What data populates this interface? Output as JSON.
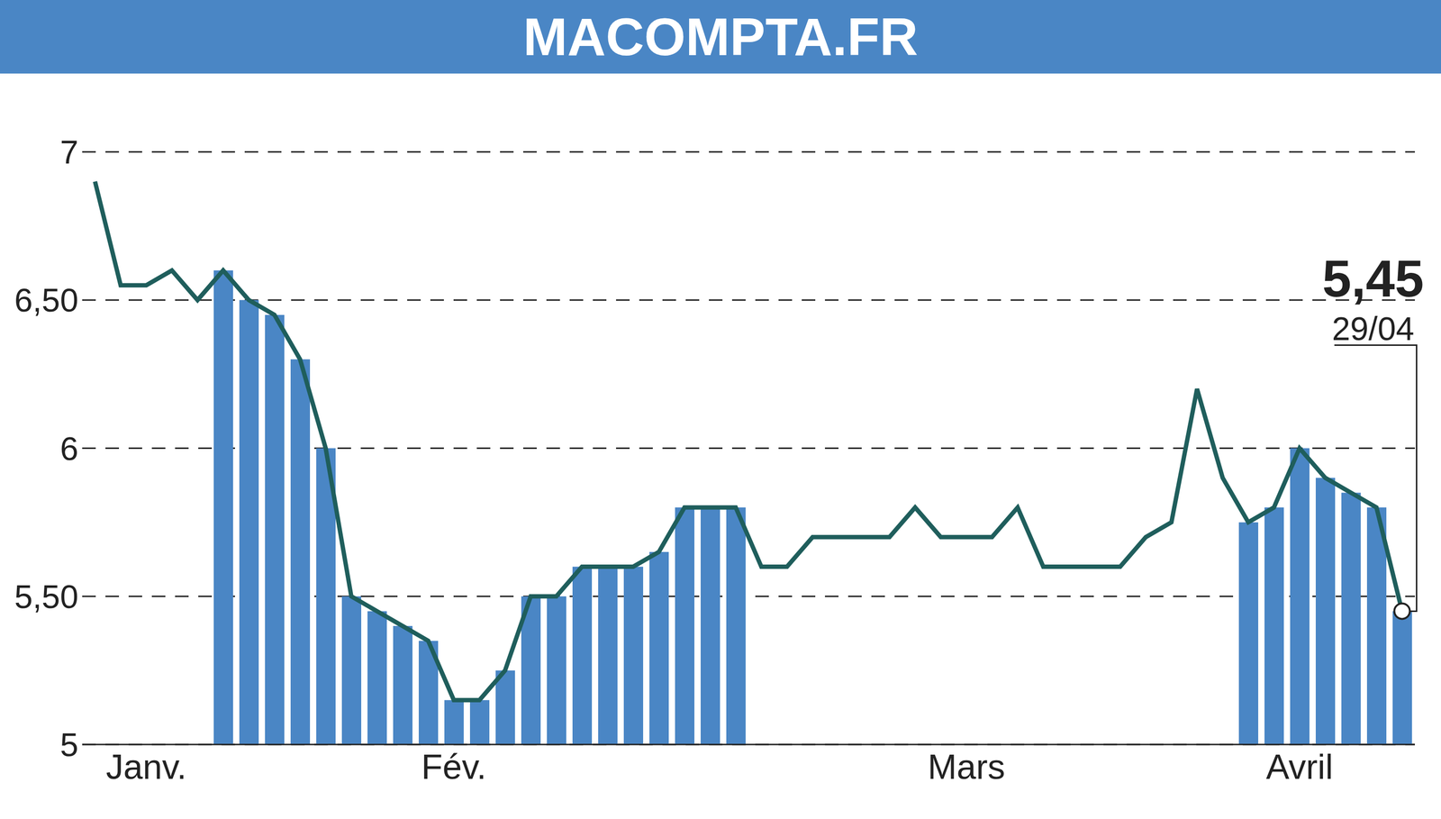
{
  "chart_data": {
    "type": "line",
    "title": "MACOMPTA.FR",
    "categories": [
      null,
      null,
      "Janv.",
      null,
      null,
      null,
      null,
      null,
      null,
      null,
      null,
      null,
      null,
      null,
      "Fév.",
      null,
      null,
      null,
      null,
      null,
      null,
      null,
      null,
      null,
      null,
      null,
      null,
      null,
      null,
      null,
      null,
      null,
      null,
      null,
      "Mars",
      null,
      null,
      null,
      null,
      null,
      null,
      null,
      null,
      null,
      null,
      null,
      null,
      "Avril",
      null,
      null,
      null,
      null
    ],
    "series": [
      {
        "type": "bar",
        "color": "#4a86c5",
        "values": [
          null,
          null,
          null,
          null,
          null,
          6.6,
          6.5,
          6.45,
          6.3,
          6.0,
          5.5,
          5.45,
          5.4,
          5.35,
          5.15,
          5.15,
          5.25,
          5.5,
          5.5,
          5.6,
          5.6,
          5.6,
          5.65,
          5.8,
          5.8,
          5.8,
          null,
          null,
          null,
          null,
          null,
          null,
          null,
          null,
          null,
          null,
          null,
          null,
          null,
          null,
          null,
          null,
          null,
          null,
          null,
          5.75,
          5.8,
          6.0,
          5.9,
          5.85,
          5.8,
          5.45
        ]
      },
      {
        "type": "line",
        "color": "#1f5e5c",
        "values": [
          6.9,
          6.55,
          6.55,
          6.6,
          6.5,
          6.6,
          6.5,
          6.45,
          6.3,
          6.0,
          5.5,
          5.45,
          5.4,
          5.35,
          5.15,
          5.15,
          5.25,
          5.5,
          5.5,
          5.6,
          5.6,
          5.6,
          5.65,
          5.8,
          5.8,
          5.8,
          5.6,
          5.6,
          5.7,
          5.7,
          5.7,
          5.7,
          5.8,
          5.7,
          5.7,
          5.7,
          5.8,
          5.6,
          5.6,
          5.6,
          5.6,
          5.7,
          5.75,
          6.2,
          5.9,
          5.75,
          5.8,
          6.0,
          5.9,
          5.85,
          5.8,
          5.45
        ]
      }
    ],
    "ylim": [
      5,
      7
    ],
    "yticks": [
      5,
      {
        "value": 5.5,
        "label": "5,50"
      },
      6,
      {
        "value": 6.5,
        "label": "6,50"
      },
      7
    ],
    "grid": true,
    "annotation": {
      "value": 5.45,
      "label": "5,45",
      "date": "29/04"
    }
  }
}
